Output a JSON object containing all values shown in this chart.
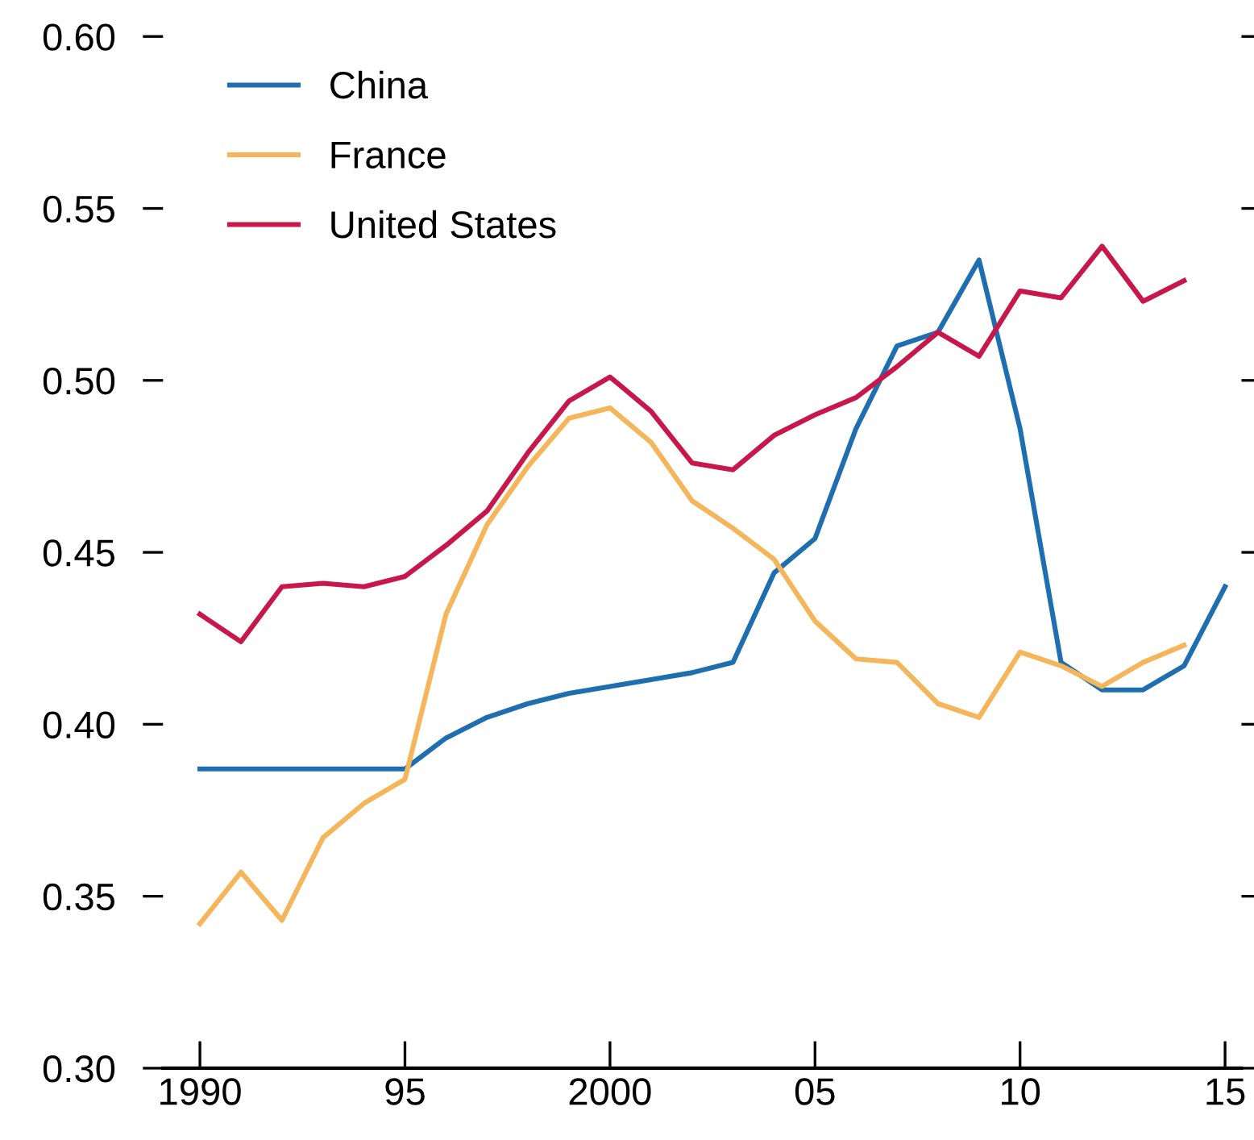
{
  "chart_data": {
    "type": "line",
    "x": [
      1990,
      1991,
      1992,
      1993,
      1994,
      1995,
      1996,
      1997,
      1998,
      1999,
      2000,
      2001,
      2002,
      2003,
      2004,
      2005,
      2006,
      2007,
      2008,
      2009,
      2010,
      2011,
      2012,
      2013,
      2014,
      2015
    ],
    "series": [
      {
        "name": "China",
        "color": "#1f6fb0",
        "values": [
          0.387,
          0.387,
          0.387,
          0.387,
          0.387,
          0.387,
          0.396,
          0.402,
          0.406,
          0.409,
          0.411,
          0.413,
          0.415,
          0.418,
          0.444,
          0.454,
          0.486,
          0.51,
          0.514,
          0.535,
          0.486,
          0.418,
          0.41,
          0.41,
          0.417,
          0.44
        ]
      },
      {
        "name": "France",
        "color": "#f5b55b",
        "values": [
          0.342,
          0.357,
          0.343,
          0.367,
          0.377,
          0.384,
          0.432,
          0.458,
          0.475,
          0.489,
          0.492,
          0.482,
          0.465,
          0.457,
          0.448,
          0.43,
          0.419,
          0.418,
          0.406,
          0.402,
          0.421,
          0.417,
          0.411,
          0.418,
          0.423,
          null
        ]
      },
      {
        "name": "United States",
        "color": "#c8174a",
        "values": [
          0.432,
          0.424,
          0.44,
          0.441,
          0.44,
          0.443,
          0.452,
          0.462,
          0.479,
          0.494,
          0.501,
          0.491,
          0.476,
          0.474,
          0.484,
          0.49,
          0.495,
          0.504,
          0.514,
          0.507,
          0.526,
          0.524,
          0.539,
          0.523,
          0.529,
          null
        ]
      }
    ],
    "xlim": [
      1989.1,
      2015.4
    ],
    "xticks": [
      1990,
      {
        "value": 1995,
        "label": "95"
      },
      2000,
      {
        "value": 2005,
        "label": "05"
      },
      {
        "value": 2010,
        "label": "10"
      },
      {
        "value": 2015,
        "label": "15"
      }
    ],
    "ylim": [
      0.3,
      0.6
    ],
    "yticks": [
      {
        "value": 0.3,
        "label": "0.30"
      },
      0.35,
      {
        "value": 0.4,
        "label": "0.40"
      },
      0.45,
      {
        "value": 0.5,
        "label": "0.50"
      },
      0.55,
      {
        "value": 0.6,
        "label": "0.60"
      }
    ],
    "grid": false,
    "legend": "top left",
    "marker": "none",
    "line_style": "solid"
  }
}
